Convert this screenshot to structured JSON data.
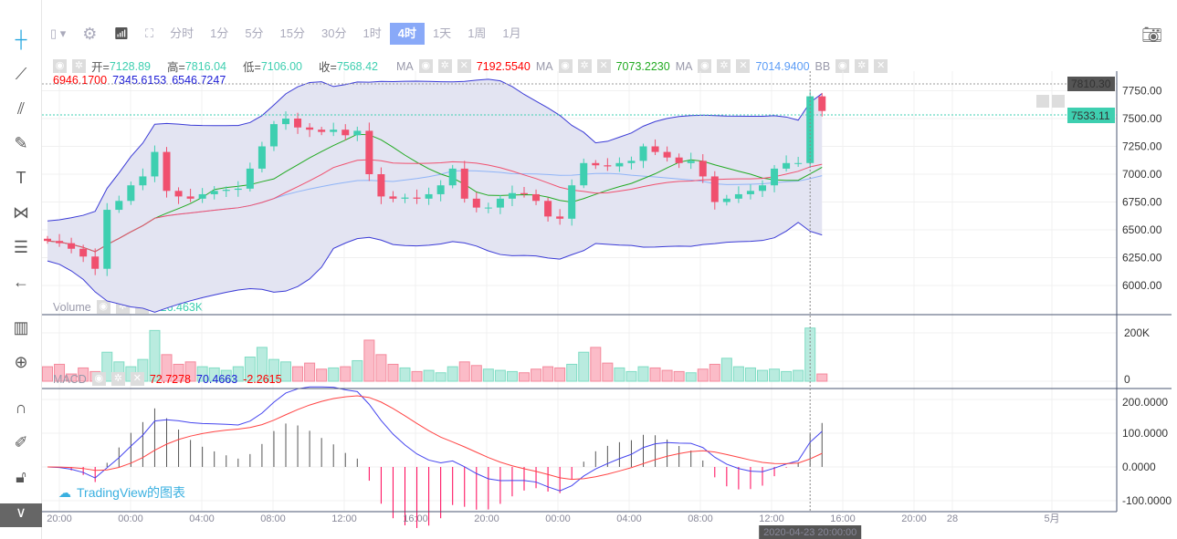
{
  "toolbar": {
    "intervals": [
      "分时",
      "1分",
      "5分",
      "15分",
      "30分",
      "1时",
      "4时",
      "1天",
      "1周",
      "1月"
    ],
    "active": "4时"
  },
  "left_tools": [
    "crosshair",
    "trend-line",
    "fib",
    "brush",
    "text",
    "pattern",
    "measure",
    "back-arrow",
    "indicators",
    "zoom",
    "magnet",
    "lock-pencil",
    "lock",
    "eye"
  ],
  "legend": {
    "open_label": "开=",
    "open": "7128.89",
    "high_label": "高=",
    "high": "7816.04",
    "low_label": "低=",
    "low": "7106.00",
    "close_label": "收=",
    "close": "7568.42",
    "ma1": {
      "label": "MA",
      "value": "7192.5540",
      "color": "#ff0000"
    },
    "ma2": {
      "label": "MA",
      "value": "7073.2230",
      "color": "#22aa22"
    },
    "ma3": {
      "label": "MA",
      "value": "7014.9400",
      "color": "#5b9cf6"
    },
    "bb": {
      "label": "BB",
      "values": [
        "6946.1700",
        "7345.6153",
        "6546.7247"
      ],
      "colors": [
        "#ff0000",
        "#1b1bd6",
        "#1b1bd6"
      ]
    }
  },
  "volume_legend": {
    "label": "Volume",
    "value": "226.463K"
  },
  "macd_legend": {
    "label": "MACD",
    "values": [
      "72.7278",
      "70.4663",
      "-2.2615"
    ],
    "colors": [
      "#ff0000",
      "#1b1bd6",
      "#ff0000"
    ]
  },
  "watermark": "TradingView的图表",
  "price_labels": {
    "high": "7810.30",
    "last": "7533.11"
  },
  "crosshair_time": "2020-04-23 20:00:00",
  "colors": {
    "up": "#3ecfb0",
    "down": "#f0506e",
    "bb_fill": "#e3e4f2",
    "bb_line": "#3a3ad6"
  },
  "chart_data": {
    "type": "candlestick",
    "price_ticks": [
      "6000.00",
      "6250.00",
      "6500.00",
      "6750.00",
      "7000.00",
      "7250.00",
      "7500.00",
      "7750.00"
    ],
    "volume_ticks": [
      "0",
      "200K"
    ],
    "macd_ticks": [
      "200.0000",
      "100.0000",
      "0.0000",
      "-100.0000"
    ],
    "x_ticks": [
      "20:00",
      "00:00",
      "04:00",
      "08:00",
      "12:00",
      "16:00",
      "20:00",
      "00:00",
      "04:00",
      "08:00",
      "12:00",
      "16:00",
      "20:00",
      "28",
      "5月"
    ],
    "closes": [
      6400,
      6380,
      6330,
      6260,
      6150,
      6680,
      6760,
      6900,
      6980,
      7200,
      6850,
      6800,
      6780,
      6820,
      6850,
      6860,
      6870,
      7050,
      7250,
      7450,
      7500,
      7420,
      7400,
      7380,
      7400,
      7350,
      7390,
      7000,
      6800,
      6780,
      6790,
      6780,
      6820,
      6900,
      7050,
      6780,
      6700,
      6700,
      6780,
      6830,
      6820,
      6760,
      6620,
      6600,
      6900,
      7100,
      7080,
      7070,
      7100,
      7120,
      7250,
      7200,
      7150,
      7100,
      7120,
      6980,
      6750,
      6780,
      6820,
      6850,
      6900,
      7050,
      7100,
      7100,
      7700,
      7568
    ],
    "volumes_k": [
      60,
      70,
      30,
      55,
      40,
      120,
      80,
      60,
      90,
      210,
      110,
      70,
      80,
      60,
      55,
      45,
      60,
      100,
      140,
      90,
      80,
      60,
      75,
      50,
      55,
      60,
      85,
      170,
      110,
      70,
      55,
      40,
      45,
      35,
      60,
      80,
      65,
      50,
      45,
      40,
      35,
      50,
      60,
      55,
      70,
      120,
      140,
      75,
      55,
      40,
      60,
      55,
      45,
      40,
      35,
      50,
      70,
      95,
      60,
      55,
      45,
      50,
      40,
      45,
      220,
      30
    ]
  }
}
